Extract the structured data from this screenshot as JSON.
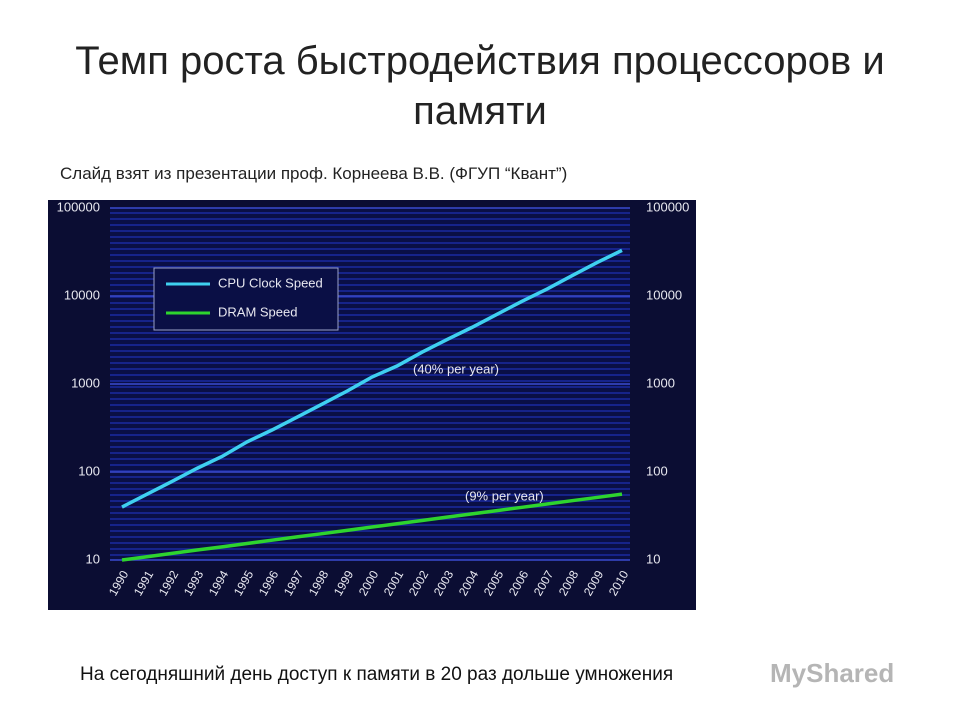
{
  "header": {
    "title": "Темп роста быстродействия процессоров и памяти",
    "subtitle": "Слайд взят из презентации проф. Корнеева В.В. (ФГУП “Квант”)"
  },
  "chart_data": {
    "type": "line",
    "categories": [
      "1990",
      "1991",
      "1992",
      "1993",
      "1994",
      "1995",
      "1996",
      "1997",
      "1998",
      "1999",
      "2000",
      "2001",
      "2002",
      "2003",
      "2004",
      "2005",
      "2006",
      "2007",
      "2008",
      "2009",
      "2010"
    ],
    "series": [
      {
        "name": "CPU Clock Speed",
        "color": "#3fd0f0",
        "values": [
          40,
          56,
          78,
          110,
          150,
          220,
          300,
          420,
          590,
          830,
          1200,
          1600,
          2300,
          3200,
          4400,
          6200,
          8700,
          12000,
          17000,
          24000,
          33000
        ]
      },
      {
        "name": "DRAM Speed",
        "color": "#2ed42e",
        "values": [
          10,
          10.9,
          11.9,
          13,
          14.1,
          15.4,
          16.8,
          18.3,
          19.9,
          21.7,
          23.7,
          25.8,
          28.1,
          30.7,
          33.4,
          36.4,
          39.7,
          43.3,
          47.2,
          51.4,
          56
        ]
      }
    ],
    "annotations": [
      "(40% per year)",
      "(9% per year)"
    ],
    "ylim": [
      10,
      100000
    ],
    "yticks": [
      10,
      100,
      1000,
      10000,
      100000
    ],
    "y2lim": [
      10,
      100000
    ],
    "y2ticks": [
      10,
      100,
      1000,
      10000,
      100000
    ],
    "log_scale": true,
    "grid": true,
    "legend": "upper left"
  },
  "footer": {
    "text": "На сегодняшний день доступ к памяти в 20 раз дольше умножения",
    "watermark": "MyShared"
  }
}
